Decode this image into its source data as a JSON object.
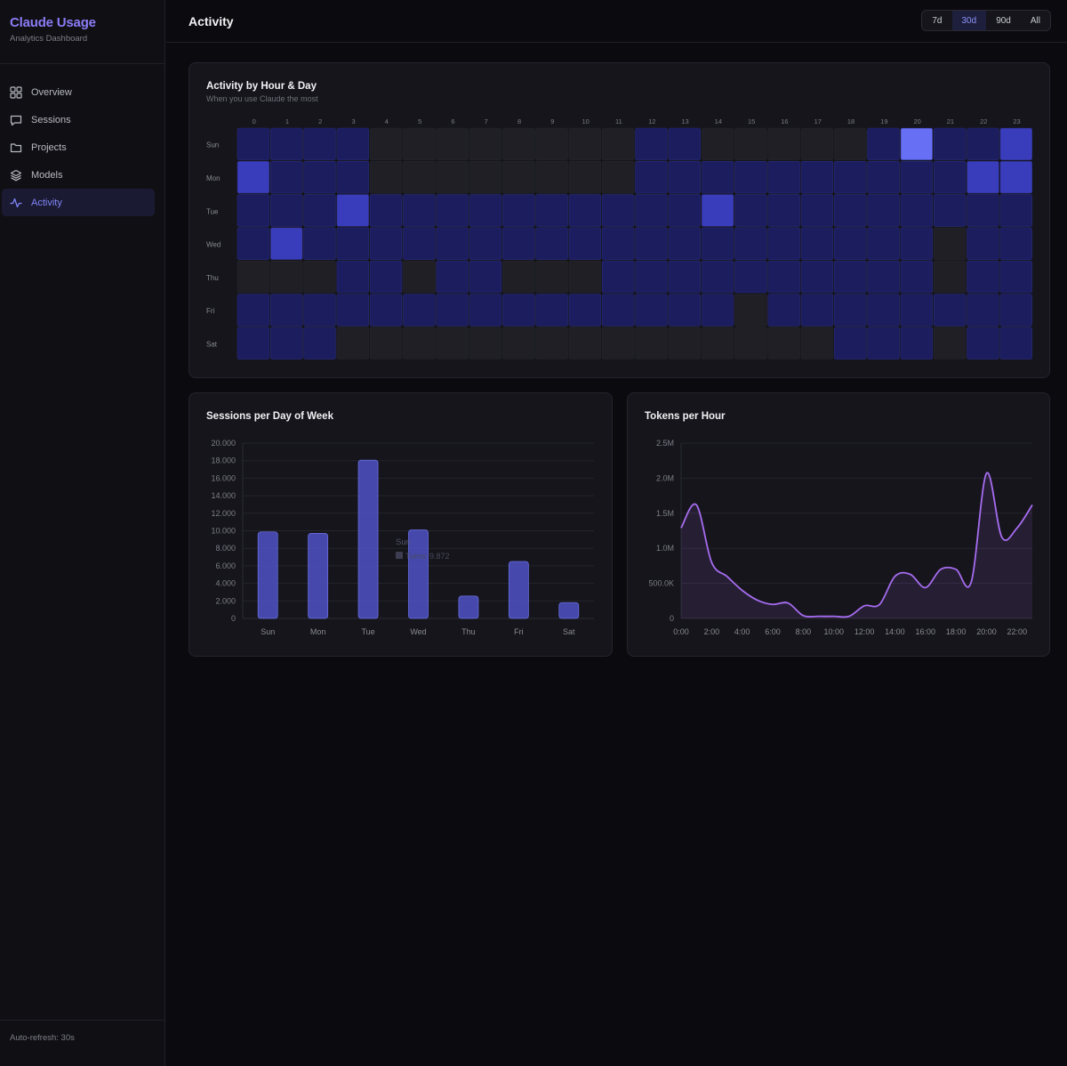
{
  "sidebar": {
    "title": "Claude Usage",
    "subtitle": "Analytics Dashboard",
    "items": [
      {
        "label": "Overview",
        "icon": "grid-icon",
        "active": false
      },
      {
        "label": "Sessions",
        "icon": "message-icon",
        "active": false
      },
      {
        "label": "Projects",
        "icon": "folder-icon",
        "active": false
      },
      {
        "label": "Models",
        "icon": "layers-icon",
        "active": false
      },
      {
        "label": "Activity",
        "icon": "activity-icon",
        "active": true
      }
    ],
    "footer": "Auto-refresh: 30s"
  },
  "header": {
    "title": "Activity",
    "ranges": [
      {
        "label": "7d",
        "active": false
      },
      {
        "label": "30d",
        "active": true
      },
      {
        "label": "90d",
        "active": false
      },
      {
        "label": "All",
        "active": false
      }
    ]
  },
  "colors": {
    "accent": "#8b7cf6",
    "bar": "#4f52c4",
    "line": "#a66cf0",
    "heat_levels": [
      "#1f1f25",
      "#1b1d5e",
      "#3a3dbb",
      "#6770f5"
    ]
  },
  "heatmap": {
    "title": "Activity by Hour & Day",
    "subtitle": "When you use Claude the most",
    "hours": [
      "0",
      "1",
      "2",
      "3",
      "4",
      "5",
      "6",
      "7",
      "8",
      "9",
      "10",
      "11",
      "12",
      "13",
      "14",
      "15",
      "16",
      "17",
      "18",
      "19",
      "20",
      "21",
      "22",
      "23"
    ],
    "days": [
      "Sun",
      "Mon",
      "Tue",
      "Wed",
      "Thu",
      "Fri",
      "Sat"
    ],
    "levels": [
      [
        1,
        1,
        1,
        1,
        0,
        0,
        0,
        0,
        0,
        0,
        0,
        0,
        1,
        1,
        0,
        0,
        0,
        0,
        0,
        1,
        3,
        1,
        1,
        2
      ],
      [
        2,
        1,
        1,
        1,
        0,
        0,
        0,
        0,
        0,
        0,
        0,
        0,
        1,
        1,
        1,
        1,
        1,
        1,
        1,
        1,
        1,
        1,
        2,
        2
      ],
      [
        1,
        1,
        1,
        2,
        1,
        1,
        1,
        1,
        1,
        1,
        1,
        1,
        1,
        1,
        2,
        1,
        1,
        1,
        1,
        1,
        1,
        1,
        1,
        1
      ],
      [
        1,
        2,
        1,
        1,
        1,
        1,
        1,
        1,
        1,
        1,
        1,
        1,
        1,
        1,
        1,
        1,
        1,
        1,
        1,
        1,
        1,
        0,
        1,
        1
      ],
      [
        0,
        0,
        0,
        1,
        1,
        0,
        1,
        1,
        0,
        0,
        0,
        1,
        1,
        1,
        1,
        1,
        1,
        1,
        1,
        1,
        1,
        0,
        1,
        1
      ],
      [
        1,
        1,
        1,
        1,
        1,
        1,
        1,
        1,
        1,
        1,
        1,
        1,
        1,
        1,
        1,
        0,
        1,
        1,
        1,
        1,
        1,
        1,
        1,
        1
      ],
      [
        1,
        1,
        1,
        0,
        0,
        0,
        0,
        0,
        0,
        0,
        0,
        0,
        0,
        0,
        0,
        0,
        0,
        0,
        1,
        1,
        1,
        0,
        1,
        1
      ]
    ]
  },
  "sessions_chart": {
    "title": "Sessions per Day of Week",
    "tooltip": {
      "day": "Sun",
      "series": "Turns",
      "value": "9.872"
    },
    "chart_data": {
      "type": "bar",
      "categories": [
        "Sun",
        "Mon",
        "Tue",
        "Wed",
        "Thu",
        "Fri",
        "Sat"
      ],
      "series": [
        {
          "name": "Turns",
          "values": [
            9872,
            9700,
            18050,
            10100,
            2550,
            6500,
            1800
          ]
        }
      ],
      "ylim": [
        0,
        20000
      ],
      "yticks": [
        "0",
        "2.000",
        "4.000",
        "6.000",
        "8.000",
        "10.000",
        "12.000",
        "14.000",
        "16.000",
        "18.000",
        "20.000"
      ],
      "ytick_values": [
        0,
        2000,
        4000,
        6000,
        8000,
        10000,
        12000,
        14000,
        16000,
        18000,
        20000
      ],
      "grid": true
    }
  },
  "tokens_chart": {
    "title": "Tokens per Hour",
    "chart_data": {
      "type": "area",
      "x": [
        0,
        1,
        2,
        3,
        4,
        5,
        6,
        7,
        8,
        9,
        10,
        11,
        12,
        13,
        14,
        15,
        16,
        17,
        18,
        19,
        20,
        21,
        22,
        23
      ],
      "values": [
        1290000,
        1620000,
        800000,
        600000,
        400000,
        260000,
        200000,
        220000,
        40000,
        30000,
        30000,
        30000,
        180000,
        200000,
        600000,
        630000,
        440000,
        700000,
        700000,
        520000,
        2070000,
        1160000,
        1290000,
        1620000
      ],
      "xticks": [
        "0:00",
        "2:00",
        "4:00",
        "6:00",
        "8:00",
        "10:00",
        "12:00",
        "14:00",
        "16:00",
        "18:00",
        "20:00",
        "22:00"
      ],
      "xtick_values": [
        0,
        2,
        4,
        6,
        8,
        10,
        12,
        14,
        16,
        18,
        20,
        22
      ],
      "yticks": [
        "0",
        "500.0K",
        "1.0M",
        "1.5M",
        "2.0M",
        "2.5M"
      ],
      "ytick_values": [
        0,
        500000,
        1000000,
        1500000,
        2000000,
        2500000
      ],
      "ylim": [
        0,
        2500000
      ],
      "grid": true
    }
  }
}
